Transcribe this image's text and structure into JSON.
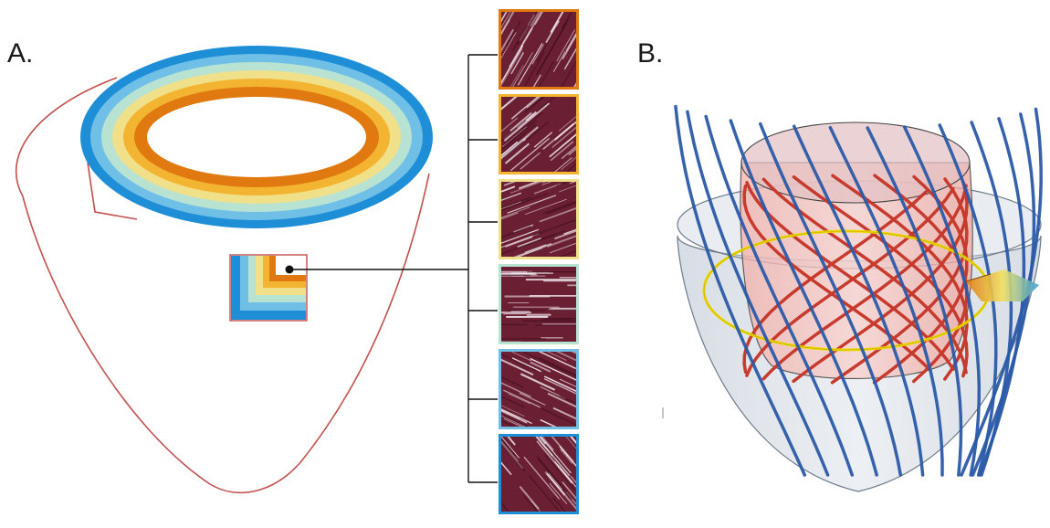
{
  "panels": {
    "a": {
      "label": "A."
    },
    "b": {
      "label": "B."
    }
  },
  "colors": {
    "outline": "#c0504d",
    "layers": [
      "#1e8fd6",
      "#6fbfe6",
      "#b8e3d3",
      "#f0e08a",
      "#f2b431",
      "#e07a10"
    ],
    "tissue": "#6a1f33",
    "tissue_streak": "#f2eaf0",
    "epi_fibers": "#2b5aa8",
    "endo_fibers": "#c73a2e",
    "ring": "#f0d800"
  },
  "histology_tiles": [
    {
      "layer": "endocardium",
      "border_color": "#e07a10",
      "fiber_angle_deg": -60
    },
    {
      "layer": "inner-mid-1",
      "border_color": "#f2b431",
      "fiber_angle_deg": -40
    },
    {
      "layer": "inner-mid-2",
      "border_color": "#f0e08a",
      "fiber_angle_deg": -20
    },
    {
      "layer": "outer-mid-1",
      "border_color": "#b8e3d3",
      "fiber_angle_deg": 0
    },
    {
      "layer": "outer-mid-2",
      "border_color": "#6fbfe6",
      "fiber_angle_deg": 25
    },
    {
      "layer": "epicardium",
      "border_color": "#1e8fd6",
      "fiber_angle_deg": 50
    }
  ]
}
